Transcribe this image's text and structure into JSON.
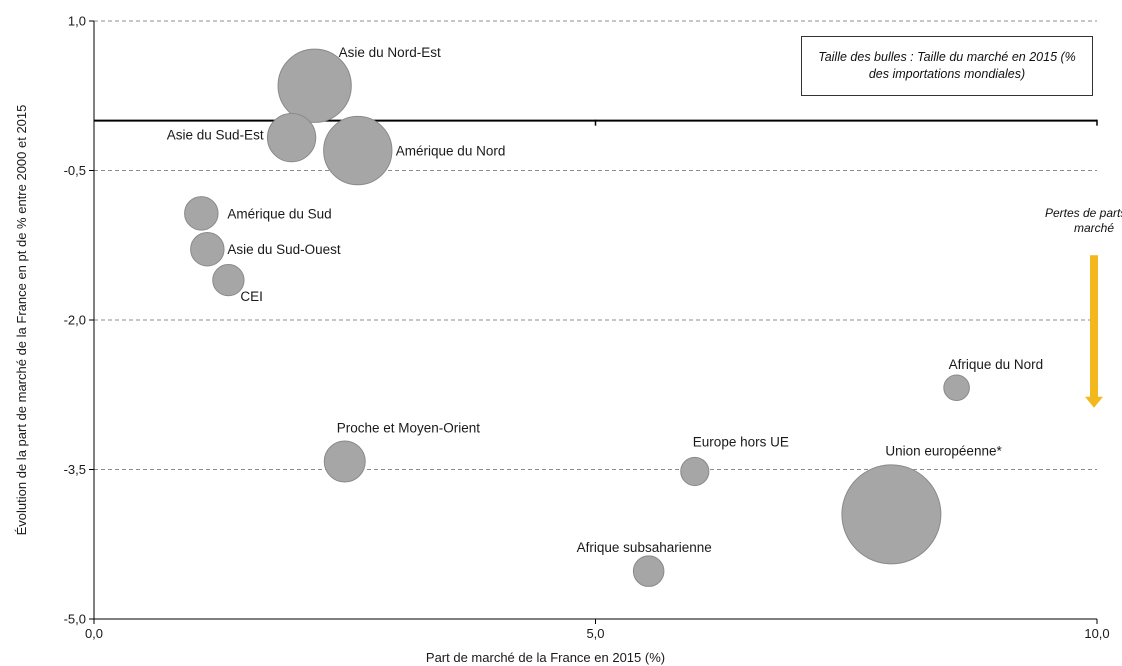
{
  "chart_data": {
    "type": "bubble",
    "xlabel": "Part de marché de la France en 2015 (%)",
    "ylabel": "Évolution de la part de marché de la France en pt de % entre 2000 et 2015",
    "xlim": [
      0,
      10
    ],
    "ylim": [
      -5,
      1
    ],
    "x_ticks": [
      "0,0",
      "5,0",
      "10,0"
    ],
    "y_ticks": [
      "1,0",
      "-0,5",
      "-2,0",
      "-3,5",
      "-5,0"
    ],
    "y_tick_values": [
      1,
      -0.5,
      -2,
      -3.5,
      -5
    ],
    "x_tick_values": [
      0,
      5,
      10
    ],
    "grid": "horizontal-dashed",
    "reference_line_y": 0,
    "bubble_color": "#a6a6a6",
    "points": [
      {
        "name": "Asie du Nord-Est",
        "x": 2.2,
        "y": 0.35,
        "size": 11.5
      },
      {
        "name": "Asie du Sud-Est",
        "x": 1.97,
        "y": -0.17,
        "size": 5.0
      },
      {
        "name": "Amérique du Nord",
        "x": 2.63,
        "y": -0.3,
        "size": 10.0
      },
      {
        "name": "Amérique du Sud",
        "x": 1.07,
        "y": -0.93,
        "size": 2.4
      },
      {
        "name": "Asie du Sud-Ouest",
        "x": 1.13,
        "y": -1.29,
        "size": 2.4
      },
      {
        "name": "CEI",
        "x": 1.34,
        "y": -1.6,
        "size": 2.1
      },
      {
        "name": "Afrique du Nord",
        "x": 8.6,
        "y": -2.68,
        "size": 1.4
      },
      {
        "name": "Proche et Moyen-Orient",
        "x": 2.5,
        "y": -3.42,
        "size": 3.6
      },
      {
        "name": "Europe hors UE",
        "x": 5.99,
        "y": -3.52,
        "size": 1.7
      },
      {
        "name": "Union européenne*",
        "x": 7.95,
        "y": -3.95,
        "size": 21.0
      },
      {
        "name": "Afrique subsaharienne",
        "x": 5.53,
        "y": -4.52,
        "size": 2.0
      }
    ]
  },
  "legend": {
    "text": "Taille des bulles : Taille du marché en 2015 (% des importations mondiales)"
  },
  "annotation": {
    "text": "Pertes de parts de marché",
    "arrow_color": "#f2b81d",
    "arrow_y_from": -1.35,
    "arrow_y_to": -2.88,
    "arrow_x": 10
  }
}
